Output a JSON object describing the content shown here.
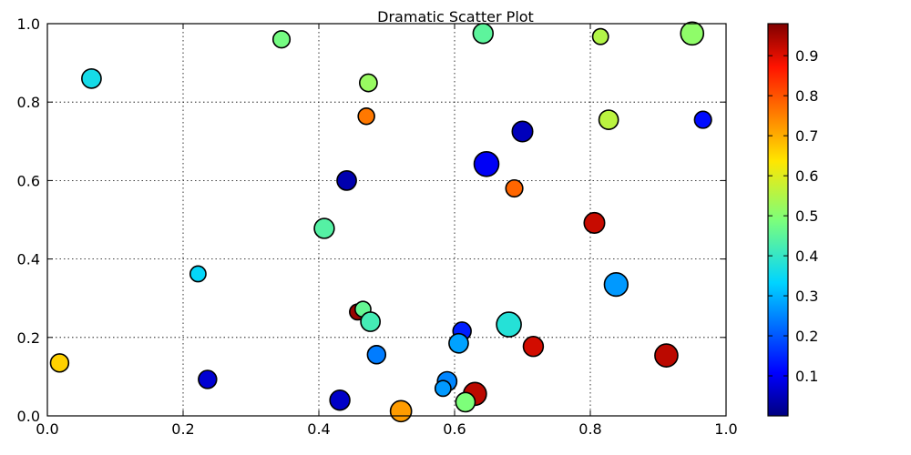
{
  "chart_data": {
    "type": "scatter",
    "title": "Dramatic Scatter Plot",
    "xlabel": "",
    "ylabel": "",
    "xlim": [
      0.0,
      1.0
    ],
    "ylim": [
      0.0,
      1.0
    ],
    "x_ticks": [
      "0.0",
      "0.2",
      "0.4",
      "0.6",
      "0.8",
      "1.0"
    ],
    "y_ticks": [
      "0.0",
      "0.2",
      "0.4",
      "0.6",
      "0.8",
      "1.0"
    ],
    "grid": true,
    "colorbar": {
      "colormap": "jet",
      "range": [
        0.0,
        0.98
      ],
      "ticks": [
        "0.1",
        "0.2",
        "0.3",
        "0.4",
        "0.5",
        "0.6",
        "0.7",
        "0.8",
        "0.9"
      ]
    },
    "points": [
      {
        "x": 0.065,
        "y": 0.86,
        "color_value": 0.36,
        "size": 0.55
      },
      {
        "x": 0.345,
        "y": 0.96,
        "color_value": 0.48,
        "size": 0.35
      },
      {
        "x": 0.642,
        "y": 0.975,
        "color_value": 0.45,
        "size": 0.6
      },
      {
        "x": 0.815,
        "y": 0.967,
        "color_value": 0.55,
        "size": 0.25
      },
      {
        "x": 0.95,
        "y": 0.975,
        "color_value": 0.51,
        "size": 0.85
      },
      {
        "x": 0.473,
        "y": 0.849,
        "color_value": 0.52,
        "size": 0.4
      },
      {
        "x": 0.47,
        "y": 0.764,
        "color_value": 0.76,
        "size": 0.3
      },
      {
        "x": 0.7,
        "y": 0.725,
        "color_value": 0.05,
        "size": 0.65
      },
      {
        "x": 0.827,
        "y": 0.755,
        "color_value": 0.56,
        "size": 0.55
      },
      {
        "x": 0.966,
        "y": 0.755,
        "color_value": 0.12,
        "size": 0.35
      },
      {
        "x": 0.647,
        "y": 0.642,
        "color_value": 0.1,
        "size": 1.0
      },
      {
        "x": 0.441,
        "y": 0.6,
        "color_value": 0.04,
        "size": 0.55
      },
      {
        "x": 0.688,
        "y": 0.58,
        "color_value": 0.78,
        "size": 0.35
      },
      {
        "x": 0.408,
        "y": 0.478,
        "color_value": 0.44,
        "size": 0.6
      },
      {
        "x": 0.806,
        "y": 0.492,
        "color_value": 0.92,
        "size": 0.65
      },
      {
        "x": 0.222,
        "y": 0.362,
        "color_value": 0.34,
        "size": 0.25
      },
      {
        "x": 0.838,
        "y": 0.335,
        "color_value": 0.27,
        "size": 0.9
      },
      {
        "x": 0.457,
        "y": 0.265,
        "color_value": 0.96,
        "size": 0.25
      },
      {
        "x": 0.465,
        "y": 0.272,
        "color_value": 0.46,
        "size": 0.25
      },
      {
        "x": 0.476,
        "y": 0.24,
        "color_value": 0.42,
        "size": 0.55
      },
      {
        "x": 0.611,
        "y": 0.216,
        "color_value": 0.14,
        "size": 0.45
      },
      {
        "x": 0.68,
        "y": 0.233,
        "color_value": 0.38,
        "size": 1.0
      },
      {
        "x": 0.606,
        "y": 0.185,
        "color_value": 0.28,
        "size": 0.55
      },
      {
        "x": 0.716,
        "y": 0.177,
        "color_value": 0.91,
        "size": 0.6
      },
      {
        "x": 0.485,
        "y": 0.156,
        "color_value": 0.24,
        "size": 0.45
      },
      {
        "x": 0.018,
        "y": 0.135,
        "color_value": 0.66,
        "size": 0.45
      },
      {
        "x": 0.912,
        "y": 0.154,
        "color_value": 0.93,
        "size": 0.85
      },
      {
        "x": 0.236,
        "y": 0.093,
        "color_value": 0.07,
        "size": 0.45
      },
      {
        "x": 0.589,
        "y": 0.088,
        "color_value": 0.25,
        "size": 0.55
      },
      {
        "x": 0.583,
        "y": 0.07,
        "color_value": 0.27,
        "size": 0.25
      },
      {
        "x": 0.63,
        "y": 0.056,
        "color_value": 0.93,
        "size": 0.85
      },
      {
        "x": 0.431,
        "y": 0.04,
        "color_value": 0.06,
        "size": 0.6
      },
      {
        "x": 0.616,
        "y": 0.035,
        "color_value": 0.49,
        "size": 0.55
      },
      {
        "x": 0.521,
        "y": 0.012,
        "color_value": 0.72,
        "size": 0.7
      }
    ]
  }
}
